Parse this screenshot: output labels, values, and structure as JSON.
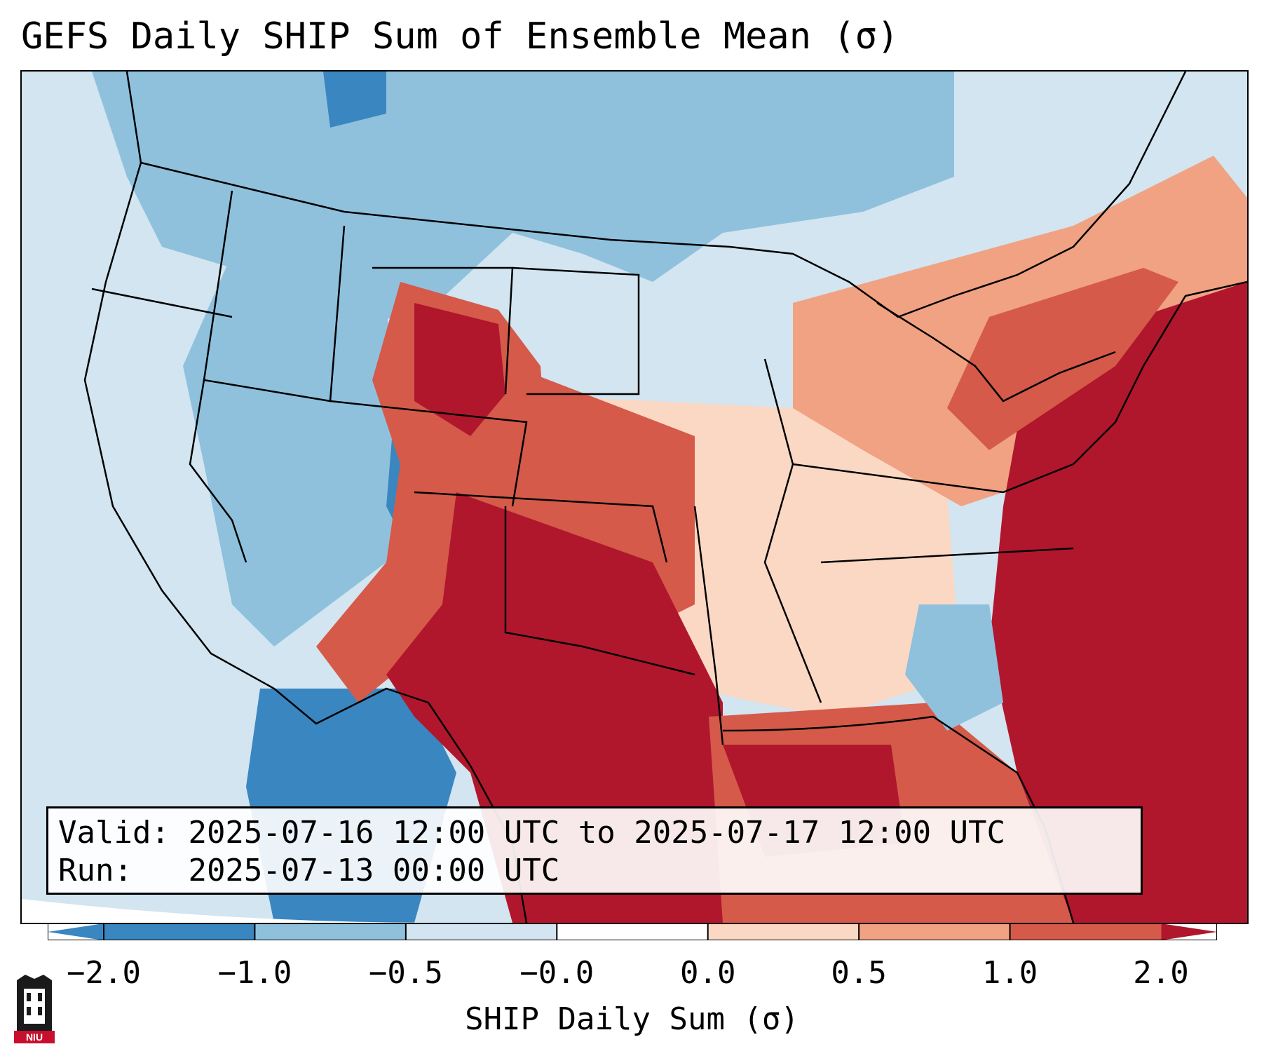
{
  "title": "GEFS Daily SHIP Sum of Ensemble Mean (σ)",
  "info": {
    "valid_label": "Valid:",
    "valid_value": "2025-07-16 12:00 UTC to 2025-07-17 12:00 UTC",
    "run_label": "Run:",
    "run_value": "2025-07-13 00:00 UTC"
  },
  "colorbar": {
    "label": "SHIP Daily Sum (σ)",
    "ticks": [
      "−2.0",
      "−1.0",
      "−0.5",
      "−0.0",
      "0.0",
      "0.5",
      "1.0",
      "2.0"
    ],
    "colors": [
      "#3a86c0",
      "#8fc1dd",
      "#d2e5f0",
      "#ffffff",
      "#fbd8c4",
      "#f0a283",
      "#d55a4a",
      "#b0172c"
    ],
    "extend_low_color": "#3a86c0",
    "extend_high_color": "#b0172c"
  },
  "map": {
    "region": "Continental United States",
    "ocean_color": "#d6e6f1",
    "boundary_color": "#000000"
  },
  "logo": {
    "text": "NIU"
  }
}
